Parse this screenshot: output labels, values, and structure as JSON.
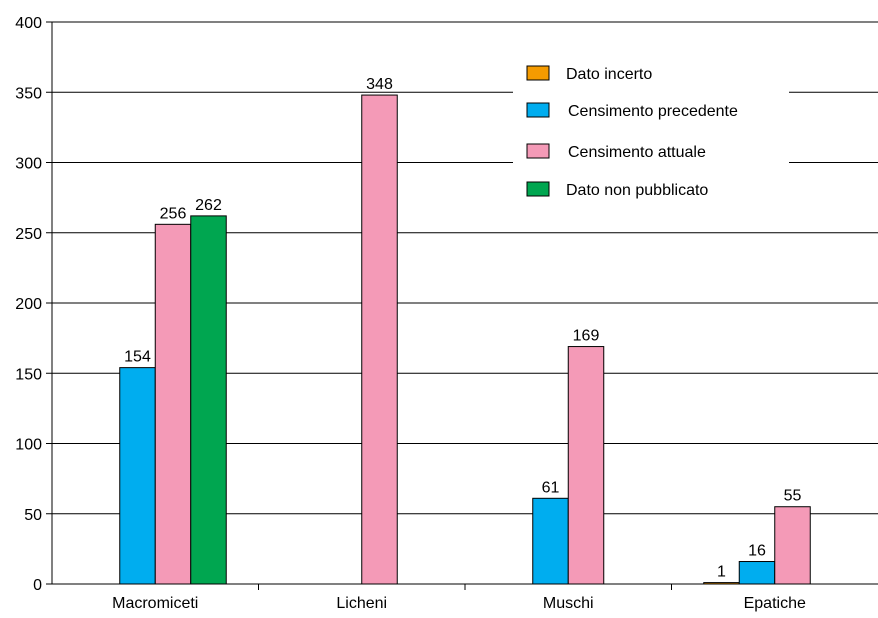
{
  "chart_data": {
    "type": "bar",
    "categories": [
      "Macromiceti",
      "Licheni",
      "Muschi",
      "Epatiche"
    ],
    "series": [
      {
        "name": "Dato incerto",
        "color": "#f59b00",
        "values": [
          null,
          null,
          null,
          1
        ]
      },
      {
        "name": "Censimento precedente",
        "color": "#00adef",
        "values": [
          154,
          null,
          61,
          16
        ]
      },
      {
        "name": "Censimento attuale",
        "color": "#f49ab7",
        "values": [
          256,
          348,
          169,
          55
        ]
      },
      {
        "name": "Dato non pubblicato",
        "color": "#00a650",
        "values": [
          262,
          null,
          null,
          null
        ]
      }
    ],
    "data_labels": {
      "Macromiceti": [
        "",
        "154",
        "256",
        "262"
      ],
      "Licheni": [
        "",
        "",
        "348",
        ""
      ],
      "Muschi": [
        "",
        "61",
        "169",
        ""
      ],
      "Epatiche": [
        "1",
        "16",
        "55",
        ""
      ]
    },
    "yticks": [
      "0",
      "50",
      "100",
      "150",
      "200",
      "250",
      "300",
      "350",
      "400"
    ],
    "ylim": [
      0,
      400
    ],
    "grid": true,
    "legend_position": "top-right",
    "title": "",
    "xlabel": "",
    "ylabel": ""
  }
}
